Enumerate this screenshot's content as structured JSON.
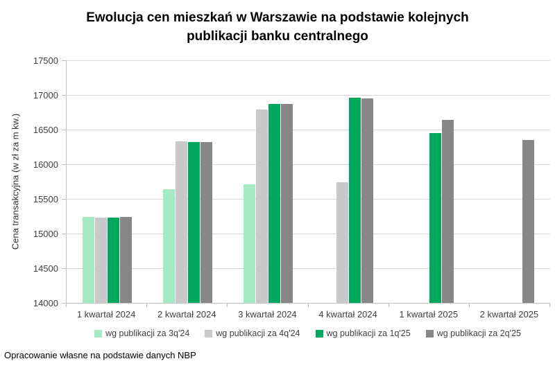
{
  "title": {
    "line1": "Ewolucja cen mieszkań w Warszawie na podstawie kolejnych",
    "line2": "publikacji banku centralnego"
  },
  "footer": "Opracowanie własne na podstawie danych NBP",
  "chart_data": {
    "type": "bar",
    "title": "Ewolucja cen mieszkań w Warszawie na podstawie kolejnych publikacji banku centralnego",
    "xlabel": "",
    "ylabel": "Cena transakcyjna (w zł za m kw.)",
    "ylim": [
      14000,
      17500
    ],
    "ytick_step": 500,
    "grid": true,
    "legend_position": "bottom",
    "categories": [
      "1 kwartał 2024",
      "2 kwartał 2024",
      "3 kwartał 2024",
      "4 kwartał 2024",
      "1 kwartał 2025",
      "2 kwartał 2025"
    ],
    "series": [
      {
        "name": "wg publikacji za 3q'24",
        "color": "#a3eac5",
        "values": [
          15240,
          15640,
          15710,
          null,
          null,
          null
        ]
      },
      {
        "name": "wg publikacji za 4q'24",
        "color": "#c9c9c9",
        "values": [
          15230,
          16330,
          16790,
          15740,
          null,
          null
        ]
      },
      {
        "name": "wg publikacji za 1q'25",
        "color": "#00a85d",
        "values": [
          15230,
          16320,
          16870,
          16960,
          16450,
          null
        ]
      },
      {
        "name": "wg publikacji za 2q'25",
        "color": "#878787",
        "values": [
          15240,
          16320,
          16870,
          16950,
          16640,
          16350
        ]
      }
    ]
  }
}
